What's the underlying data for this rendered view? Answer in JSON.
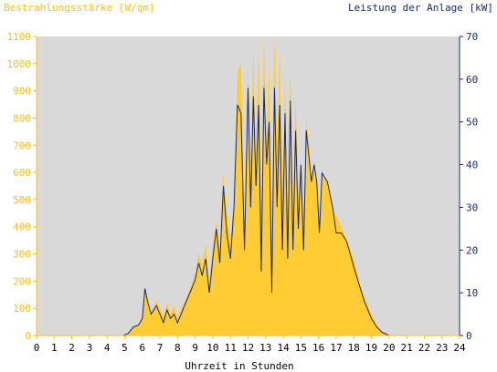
{
  "chart_data": {
    "type": "area",
    "left_axis_label": "Bestrahlungsstärke [W/qm]",
    "right_axis_label": "Leistung der Anlage [kW]",
    "xlabel": "Uhrzeit in Stunden",
    "xlim": [
      0,
      24
    ],
    "ylim_left": [
      0,
      1100
    ],
    "ylim_right": [
      0,
      70
    ],
    "x_ticks": [
      0,
      1,
      2,
      3,
      4,
      5,
      6,
      7,
      8,
      9,
      10,
      11,
      12,
      13,
      14,
      15,
      16,
      17,
      18,
      19,
      20,
      21,
      22,
      23,
      24
    ],
    "y_left_ticks": [
      0,
      100,
      200,
      300,
      400,
      500,
      600,
      700,
      800,
      900,
      1000,
      1100
    ],
    "y_right_ticks": [
      0,
      10,
      20,
      30,
      40,
      50,
      60,
      70
    ],
    "grid": false,
    "series": [
      {
        "name": "Bestrahlungsstärke [W/qm]",
        "axis": "left",
        "color": "#ffcc33",
        "x": [
          0,
          4.9,
          5.2,
          5.5,
          5.8,
          6.0,
          6.15,
          6.3,
          6.5,
          6.8,
          7.0,
          7.2,
          7.4,
          7.6,
          7.8,
          8.0,
          8.2,
          8.5,
          8.8,
          9.0,
          9.2,
          9.4,
          9.6,
          9.8,
          10.0,
          10.2,
          10.4,
          10.6,
          10.8,
          11.0,
          11.2,
          11.4,
          11.6,
          11.8,
          12.0,
          12.15,
          12.3,
          12.45,
          12.6,
          12.75,
          12.9,
          13.05,
          13.2,
          13.35,
          13.5,
          13.65,
          13.8,
          13.95,
          14.1,
          14.25,
          14.4,
          14.55,
          14.7,
          14.85,
          15.0,
          15.15,
          15.3,
          15.45,
          15.6,
          15.75,
          15.9,
          16.05,
          16.2,
          16.5,
          16.8,
          17.0,
          17.3,
          17.6,
          18.0,
          18.3,
          18.6,
          19.0,
          19.3,
          19.6,
          20.0,
          20.3,
          20.6,
          21.0,
          24
        ],
        "values": [
          0,
          0,
          5,
          30,
          40,
          60,
          175,
          140,
          80,
          130,
          100,
          70,
          120,
          80,
          110,
          60,
          100,
          140,
          190,
          230,
          300,
          260,
          340,
          180,
          330,
          420,
          320,
          600,
          450,
          350,
          500,
          970,
          1000,
          400,
          1000,
          550,
          1050,
          600,
          1080,
          400,
          1100,
          700,
          1000,
          300,
          1100,
          700,
          1050,
          500,
          950,
          400,
          1000,
          450,
          880,
          500,
          650,
          400,
          800,
          700,
          560,
          650,
          550,
          400,
          600,
          560,
          450,
          440,
          400,
          350,
          280,
          200,
          140,
          80,
          40,
          15,
          5,
          0,
          0,
          0,
          0
        ]
      },
      {
        "name": "Leistung der Anlage [kW]",
        "axis": "right",
        "color": "#1a2a6c",
        "x": [
          0,
          4.9,
          5.2,
          5.5,
          5.8,
          6.0,
          6.15,
          6.3,
          6.5,
          6.8,
          7.0,
          7.2,
          7.4,
          7.6,
          7.8,
          8.0,
          8.2,
          8.5,
          8.8,
          9.0,
          9.2,
          9.4,
          9.6,
          9.8,
          10.0,
          10.2,
          10.4,
          10.6,
          10.8,
          11.0,
          11.2,
          11.4,
          11.6,
          11.8,
          12.0,
          12.15,
          12.3,
          12.45,
          12.6,
          12.75,
          12.9,
          13.05,
          13.2,
          13.35,
          13.5,
          13.65,
          13.8,
          13.95,
          14.1,
          14.25,
          14.4,
          14.55,
          14.7,
          14.85,
          15.0,
          15.15,
          15.3,
          15.45,
          15.6,
          15.75,
          15.9,
          16.05,
          16.2,
          16.5,
          16.8,
          17.0,
          17.3,
          17.6,
          18.0,
          18.3,
          18.6,
          19.0,
          19.3,
          19.6,
          20.0,
          20.3,
          20.6,
          21.0,
          24
        ],
        "values": [
          0,
          0,
          0.5,
          2,
          2.5,
          4,
          11,
          8,
          5,
          7,
          5,
          3,
          6,
          4,
          5,
          3,
          5,
          8,
          11,
          13,
          17,
          14,
          18,
          10,
          18,
          25,
          17,
          35,
          24,
          18,
          30,
          54,
          52,
          20,
          58,
          30,
          56,
          35,
          54,
          15,
          58,
          40,
          50,
          10,
          58,
          30,
          54,
          20,
          52,
          18,
          55,
          20,
          48,
          25,
          40,
          20,
          48,
          42,
          36,
          40,
          36,
          24,
          38,
          36,
          30,
          24,
          24,
          22,
          16,
          12,
          8,
          4,
          2,
          0.8,
          0,
          0,
          0,
          0,
          0
        ]
      }
    ]
  }
}
